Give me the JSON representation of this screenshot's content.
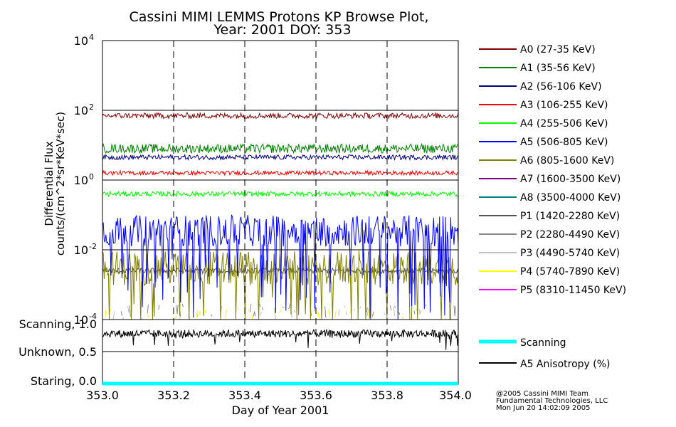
{
  "title": {
    "line1": "Cassini MIMI LEMMS Protons KP Browse Plot,",
    "line2": "Year: 2001 DOY: 353"
  },
  "credits": {
    "line1": "@2005 Cassini MIMI Team",
    "line2": "Fundamental Technologies, LLC",
    "line3": "Mon Jun 20 14:02:09 2005"
  },
  "chart_data": [
    {
      "type": "line",
      "title": "Cassini MIMI LEMMS Protons KP Browse Plot, Year: 2001 DOY: 353",
      "ylabel_line1": "Differential Flux",
      "ylabel_line2": "counts/(cm^2*sr*KeV*sec)",
      "y_scale": "log",
      "ylim": [
        0.0001,
        10000
      ],
      "y_ticks": [
        {
          "value": 10000,
          "base": "10",
          "exp": "4"
        },
        {
          "value": 100,
          "base": "10",
          "exp": "2"
        },
        {
          "value": 1,
          "base": "10",
          "exp": "0"
        },
        {
          "value": 0.01,
          "base": "10",
          "exp": "-2"
        },
        {
          "value": 0.0001,
          "base": "10",
          "exp": "-4"
        }
      ],
      "xlim": [
        353.0,
        354.0
      ],
      "grid": "vertical dashed lines at 353.2, 353.4, 353.6, 353.8",
      "legend_position": "right",
      "series": [
        {
          "name": "A0 (27-35 KeV)",
          "color": "#800000",
          "level": 70,
          "noise_dex": 0.08,
          "visible": true
        },
        {
          "name": "A1 (35-56 KeV)",
          "color": "#008000",
          "level": 8,
          "noise_dex": 0.13,
          "visible": true
        },
        {
          "name": "A2 (56-106 KeV)",
          "color": "#000080",
          "level": 4.5,
          "noise_dex": 0.07,
          "visible": true
        },
        {
          "name": "A3 (106-255 KeV)",
          "color": "#ff0000",
          "level": 1.6,
          "noise_dex": 0.06,
          "visible": true
        },
        {
          "name": "A4 (255-506 KeV)",
          "color": "#00ff00",
          "level": 0.4,
          "noise_dex": 0.07,
          "visible": true
        },
        {
          "name": "A5 (506-805 KeV)",
          "color": "#0000ff",
          "level": 0.035,
          "noise_dex": 0.45,
          "visible": true
        },
        {
          "name": "A6 (805-1600 KeV)",
          "color": "#808000",
          "level": 0.003,
          "noise_dex": 0.5,
          "visible": true
        },
        {
          "name": "A7 (1600-3500 KeV)",
          "color": "#800080",
          "level": 0.0003,
          "noise_dex": 0.3,
          "visible": false
        },
        {
          "name": "A8 (3500-4000 KeV)",
          "color": "#008080",
          "level": 0.0003,
          "noise_dex": 0.3,
          "visible": false
        },
        {
          "name": "P1 (1420-2280 KeV)",
          "color": "#555555",
          "level": 0.0025,
          "noise_dex": 0.08,
          "visible": true
        },
        {
          "name": "P2 (2280-4490 KeV)",
          "color": "#888888",
          "level": 0.00018,
          "noise_dex": 0.2,
          "visible": true
        },
        {
          "name": "P3 (4490-5740 KeV)",
          "color": "#c0c0c0",
          "level": 0.00015,
          "noise_dex": 0.2,
          "visible": true
        },
        {
          "name": "P4 (5740-7890 KeV)",
          "color": "#ffff00",
          "level": 0.00015,
          "noise_dex": 0.2,
          "visible": true
        },
        {
          "name": "P5 (8310-11450 KeV)",
          "color": "#ff00ff",
          "level": 0.0001,
          "noise_dex": 0.1,
          "visible": false
        }
      ]
    },
    {
      "type": "line",
      "xlabel": "Day of Year 2001",
      "xlim": [
        353.0,
        354.0
      ],
      "x_ticks": [
        "353.0",
        "353.2",
        "353.4",
        "353.6",
        "353.8",
        "354.0"
      ],
      "y_tick_labels": [
        "Scanning, 1.0",
        "Unknown, 0.5",
        "Staring, 0.0"
      ],
      "ylim": [
        0.0,
        1.0
      ],
      "series": [
        {
          "name": "Scanning",
          "color": "#00ffff",
          "value": 0.0
        },
        {
          "name": "A5 Anisotropy (%)",
          "color": "#000000",
          "level": 0.78,
          "noise": 0.06
        }
      ]
    }
  ]
}
